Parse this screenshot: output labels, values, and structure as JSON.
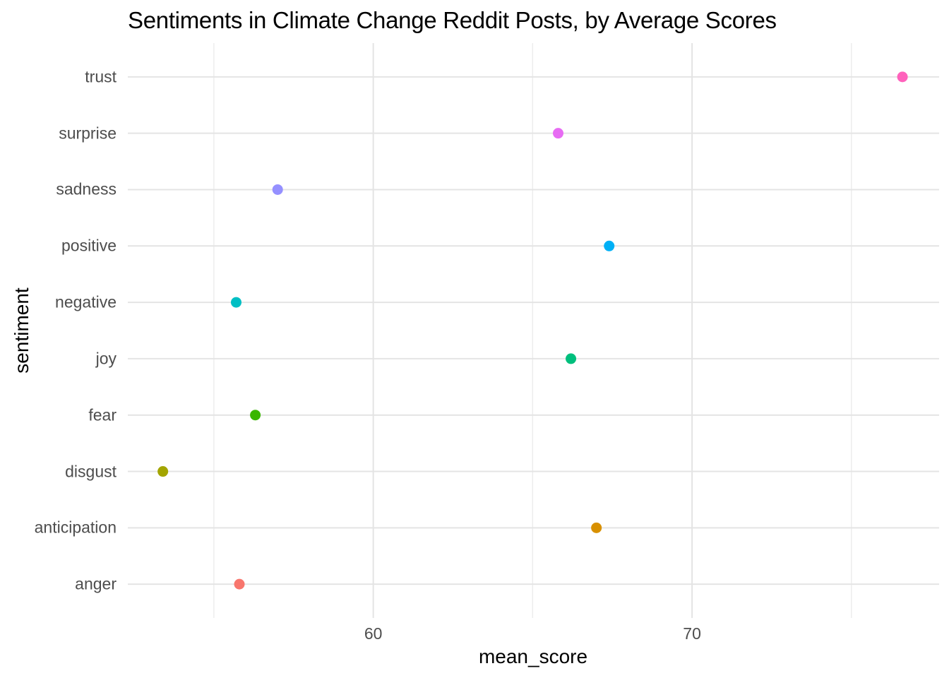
{
  "chart_data": {
    "type": "scatter",
    "title": "Sentiments in Climate Change Reddit Posts, by Average Scores",
    "xlabel": "mean_score",
    "ylabel": "sentiment",
    "categories": [
      "trust",
      "surprise",
      "sadness",
      "positive",
      "negative",
      "joy",
      "fear",
      "disgust",
      "anticipation",
      "anger"
    ],
    "values": [
      76.6,
      65.8,
      57.0,
      67.4,
      55.7,
      66.2,
      56.3,
      53.4,
      67.0,
      55.8
    ],
    "point_colors": [
      "#FF62BC",
      "#E76BF3",
      "#9590FF",
      "#00B0F6",
      "#00BFC4",
      "#00BF7D",
      "#39B600",
      "#A3A500",
      "#D89000",
      "#F8766D"
    ],
    "x_major_ticks": [
      60,
      70
    ],
    "x_minor_ticks": [
      55,
      65,
      75
    ],
    "xlim": [
      52.3,
      77.75
    ],
    "grid": "on",
    "legend": "none",
    "background_color": "#FFFFFF",
    "grid_major_color": "#E4E4E4",
    "grid_minor_color": "#ECECEC",
    "axis_text_color": "#4D4D4D",
    "title_color": "#000000"
  }
}
